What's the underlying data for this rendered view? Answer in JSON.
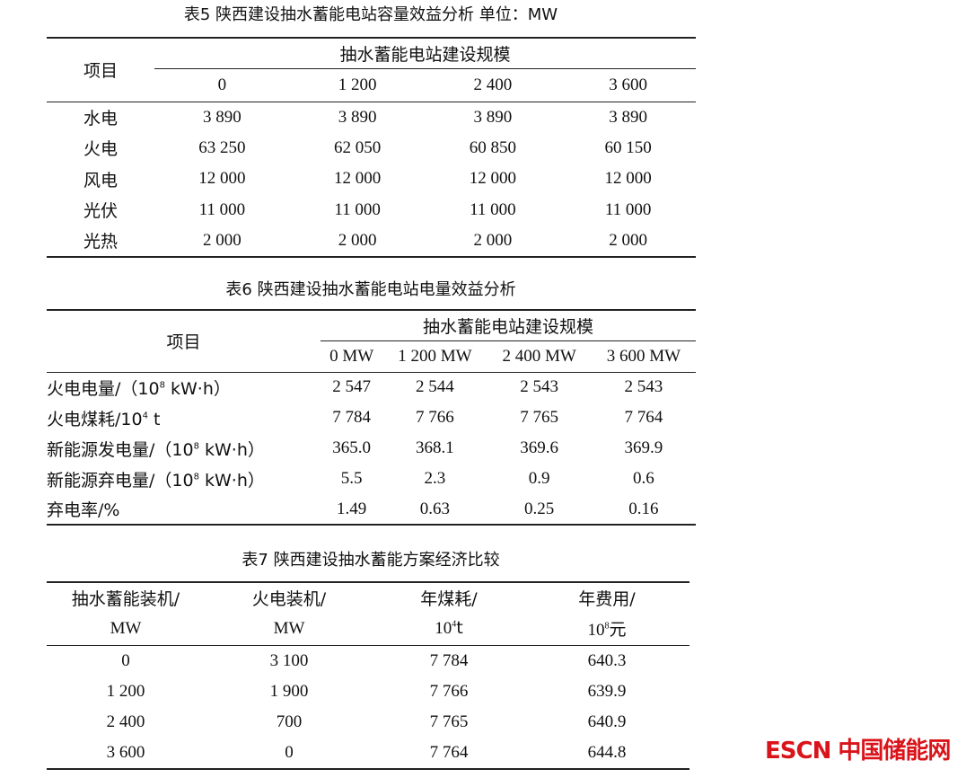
{
  "table5": {
    "caption": "表5 陕西建设抽水蓄能电站容量效益分析   单位：MW",
    "row_header": "项目",
    "group_header": "抽水蓄能电站建设规模",
    "columns": [
      "0",
      "1 200",
      "2 400",
      "3 600"
    ],
    "rows": [
      {
        "label": "水电",
        "values": [
          "3 890",
          "3 890",
          "3 890",
          "3 890"
        ]
      },
      {
        "label": "火电",
        "values": [
          "63 250",
          "62 050",
          "60 850",
          "60 150"
        ]
      },
      {
        "label": "风电",
        "values": [
          "12 000",
          "12 000",
          "12 000",
          "12 000"
        ]
      },
      {
        "label": "光伏",
        "values": [
          "11 000",
          "11 000",
          "11 000",
          "11 000"
        ]
      },
      {
        "label": "光热",
        "values": [
          "2 000",
          "2 000",
          "2 000",
          "2 000"
        ]
      }
    ]
  },
  "table6": {
    "caption": "表6 陕西建设抽水蓄能电站电量效益分析",
    "row_header": "项目",
    "group_header": "抽水蓄能电站建设规模",
    "columns": [
      "0 MW",
      "1 200 MW",
      "2 400 MW",
      "3 600 MW"
    ],
    "rows": [
      {
        "label": "火电电量/（10",
        "sup": "8",
        "unit": " kW·h）",
        "values": [
          "2 547",
          "2 544",
          "2 543",
          "2 543"
        ]
      },
      {
        "label": "火电煤耗/10",
        "sup": "4",
        "unit": " t",
        "values": [
          "7 784",
          "7 766",
          "7 765",
          "7 764"
        ]
      },
      {
        "label": "新能源发电量/（10",
        "sup": "8",
        "unit": " kW·h）",
        "values": [
          "365.0",
          "368.1",
          "369.6",
          "369.9"
        ]
      },
      {
        "label": "新能源弃电量/（10",
        "sup": "8",
        "unit": " kW·h）",
        "values": [
          "5.5",
          "2.3",
          "0.9",
          "0.6"
        ]
      },
      {
        "label": "弃电率/%",
        "sup": "",
        "unit": "",
        "values": [
          "1.49",
          "0.63",
          "0.25",
          "0.16"
        ]
      }
    ]
  },
  "table7": {
    "caption": "表7 陕西建设抽水蓄能方案经济比较",
    "headers": [
      {
        "line1": "抽水蓄能装机/",
        "line2": "MW",
        "sup": "",
        "after": ""
      },
      {
        "line1": "火电装机/",
        "line2": "MW",
        "sup": "",
        "after": ""
      },
      {
        "line1": "年煤耗/",
        "line2": "10",
        "sup": "4",
        "after": "t"
      },
      {
        "line1": "年费用/",
        "line2": "10",
        "sup": "8",
        "after": "元"
      }
    ],
    "rows": [
      [
        "0",
        "3 100",
        "7 784",
        "640.3"
      ],
      [
        "1 200",
        "1 900",
        "7 766",
        "639.9"
      ],
      [
        "2 400",
        "700",
        "7 765",
        "640.9"
      ],
      [
        "3 600",
        "0",
        "7 764",
        "644.8"
      ]
    ]
  },
  "watermark": {
    "text": "ESCN中国储能网",
    "color": "#d9141b"
  }
}
